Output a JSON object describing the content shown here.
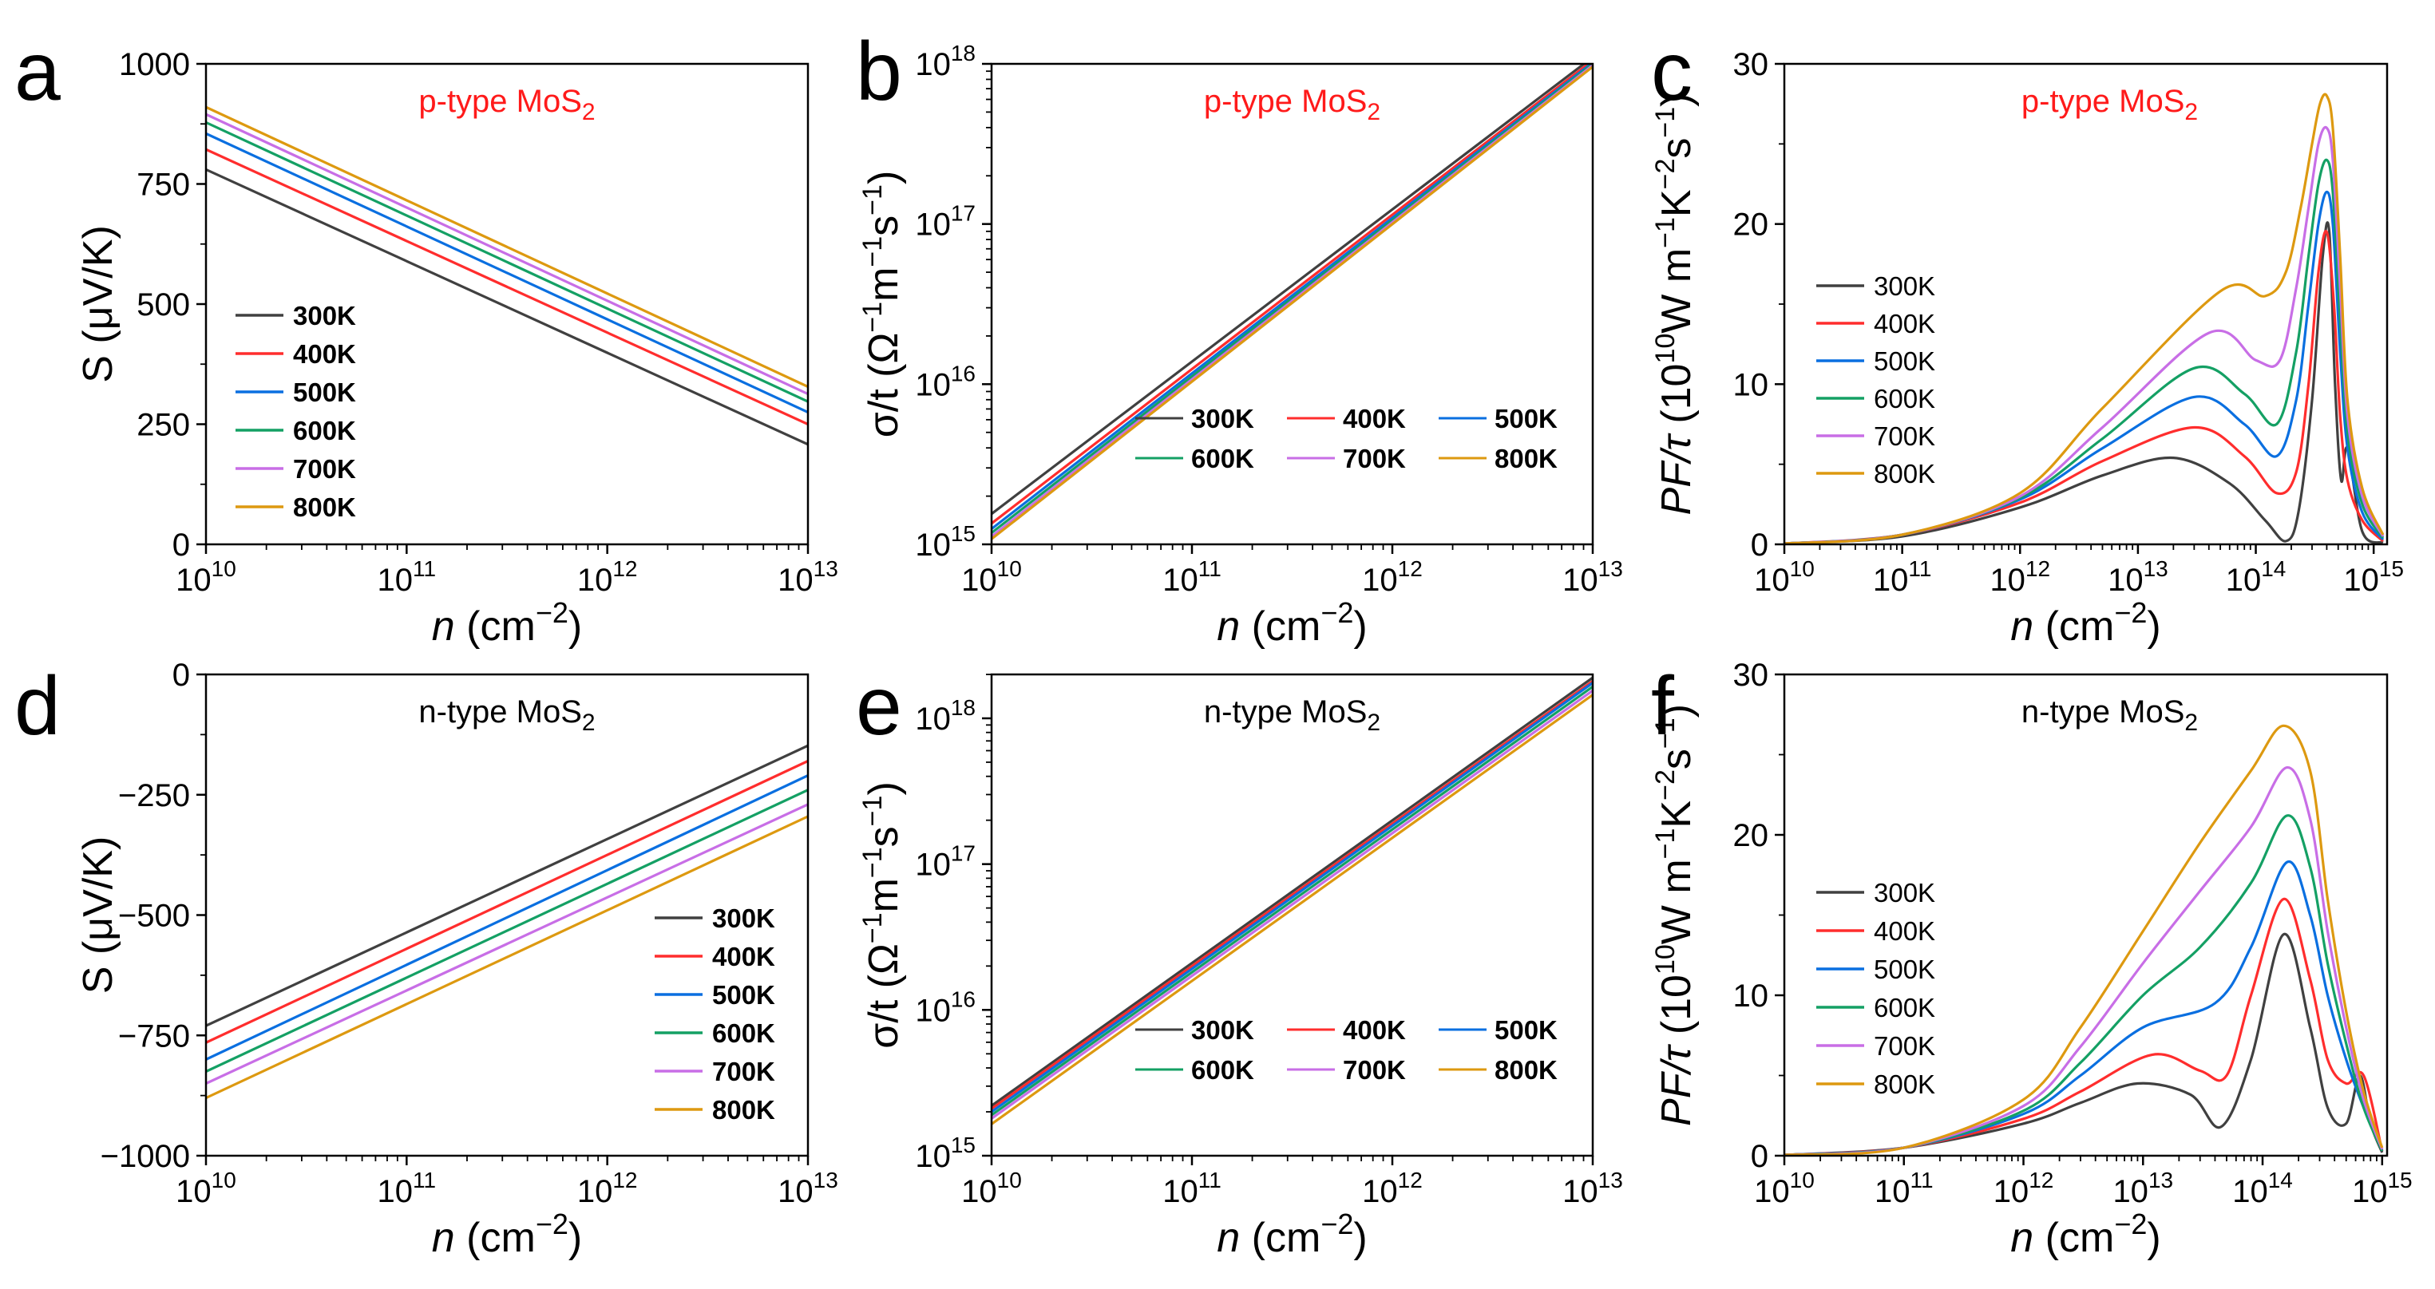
{
  "figure": {
    "material": "MoS2",
    "temperatures": [
      "300K",
      "400K",
      "500K",
      "600K",
      "700K",
      "800K"
    ],
    "colors": [
      "#404040",
      "#ff2d2d",
      "#0a6fe0",
      "#14a064",
      "#c86ee6",
      "#dd9910"
    ],
    "x_axis_label": "n (cm−2)"
  },
  "chart_data": [
    {
      "panel": "a",
      "type": "line",
      "title": "p-type MoS2",
      "xlabel": "n (cm−2)",
      "ylabel": "S (μV/K)",
      "xscale": "log",
      "xlim": [
        10000000000.0,
        10000000000000.0
      ],
      "yscale": "linear",
      "ylim": [
        0,
        1000
      ],
      "xticks": [
        "10^10",
        "10^11",
        "10^12",
        "10^13"
      ],
      "yticks": [
        "0",
        "250",
        "500",
        "750",
        "1000"
      ],
      "legend": "lower-left",
      "series": [
        {
          "name": "300K",
          "x": [
            10000000000.0,
            10000000000000.0
          ],
          "y": [
            780,
            208
          ]
        },
        {
          "name": "400K",
          "x": [
            10000000000.0,
            10000000000000.0
          ],
          "y": [
            822,
            250
          ]
        },
        {
          "name": "500K",
          "x": [
            10000000000.0,
            10000000000000.0
          ],
          "y": [
            855,
            275
          ]
        },
        {
          "name": "600K",
          "x": [
            10000000000.0,
            10000000000000.0
          ],
          "y": [
            878,
            297
          ]
        },
        {
          "name": "700K",
          "x": [
            10000000000.0,
            10000000000000.0
          ],
          "y": [
            895,
            313
          ]
        },
        {
          "name": "800K",
          "x": [
            10000000000.0,
            10000000000000.0
          ],
          "y": [
            910,
            328
          ]
        }
      ]
    },
    {
      "panel": "b",
      "type": "line",
      "title": "p-type MoS2",
      "xlabel": "n (cm−2)",
      "ylabel": "σ/t (Ω−1m−1s−1)",
      "xscale": "log",
      "xlim": [
        10000000000.0,
        10000000000000.0
      ],
      "yscale": "log",
      "ylim": [
        1000000000000000.0,
        1e+18
      ],
      "xticks": [
        "10^10",
        "10^11",
        "10^12",
        "10^13"
      ],
      "yticks": [
        "10^15",
        "10^16",
        "10^17",
        "10^18"
      ],
      "legend": "lower-right",
      "series": [
        {
          "name": "300K",
          "x": [
            10000000000.0,
            10000000000000.0
          ],
          "y": [
            1550000000000000.0,
            1.1e+18
          ]
        },
        {
          "name": "400K",
          "x": [
            10000000000.0,
            10000000000000.0
          ],
          "y": [
            1350000000000000.0,
            1.05e+18
          ]
        },
        {
          "name": "500K",
          "x": [
            10000000000.0,
            10000000000000.0
          ],
          "y": [
            1250000000000000.0,
            1.02e+18
          ]
        },
        {
          "name": "600K",
          "x": [
            10000000000.0,
            10000000000000.0
          ],
          "y": [
            1180000000000000.0,
            1e+18
          ]
        },
        {
          "name": "700K",
          "x": [
            10000000000.0,
            10000000000000.0
          ],
          "y": [
            1120000000000000.0,
            9.8e+17
          ]
        },
        {
          "name": "800K",
          "x": [
            10000000000.0,
            10000000000000.0
          ],
          "y": [
            1080000000000000.0,
            9.6e+17
          ]
        }
      ]
    },
    {
      "panel": "c",
      "type": "line",
      "title": "p-type MoS2",
      "xlabel": "n (cm−2)",
      "ylabel": "PF/τ (10^10 W m−1K−2s−1)",
      "xscale": "log",
      "xlim": [
        10000000000.0,
        1300000000000000.0
      ],
      "yscale": "linear",
      "ylim": [
        0,
        30
      ],
      "xticks": [
        "10^10",
        "10^11",
        "10^12",
        "10^13",
        "10^14",
        "10^15"
      ],
      "yticks": [
        "0",
        "10",
        "20",
        "30"
      ],
      "legend": "center-left",
      "series": [
        {
          "name": "300K",
          "x": [
            10000000000.0,
            100000000000.0,
            1000000000000.0,
            5000000000000.0,
            20000000000000.0,
            60000000000000.0,
            120000000000000.0,
            180000000000000.0,
            230000000000000.0,
            300000000000000.0,
            370000000000000.0,
            420000000000000.0,
            470000000000000.0,
            530000000000000.0,
            600000000000000.0,
            800000000000000.0,
            1200000000000000.0
          ],
          "y": [
            0.05,
            0.5,
            2.3,
            4.3,
            5.4,
            3.8,
            1.5,
            0.2,
            2,
            9,
            18,
            19.5,
            10,
            4,
            6,
            0.8,
            0.1
          ]
        },
        {
          "name": "400K",
          "x": [
            10000000000.0,
            100000000000.0,
            1000000000000.0,
            5000000000000.0,
            30000000000000.0,
            80000000000000.0,
            150000000000000.0,
            220000000000000.0,
            280000000000000.0,
            340000000000000.0,
            400000000000000.0,
            460000000000000.0,
            520000000000000.0,
            600000000000000.0,
            800000000000000.0,
            1200000000000000.0
          ],
          "y": [
            0.05,
            0.6,
            2.6,
            5.2,
            7.3,
            5.5,
            3.2,
            4.5,
            10,
            17,
            19.5,
            15,
            8,
            4,
            1.5,
            0.2
          ]
        },
        {
          "name": "500K",
          "x": [
            10000000000.0,
            100000000000.0,
            1000000000000.0,
            5000000000000.0,
            30000000000000.0,
            80000000000000.0,
            150000000000000.0,
            220000000000000.0,
            280000000000000.0,
            340000000000000.0,
            400000000000000.0,
            450000000000000.0,
            520000000000000.0,
            600000000000000.0,
            800000000000000.0,
            1200000000000000.0
          ],
          "y": [
            0.05,
            0.6,
            2.8,
            6.0,
            9.2,
            7.5,
            5.5,
            9,
            15,
            20,
            22,
            20,
            12,
            6,
            2,
            0.3
          ]
        },
        {
          "name": "600K",
          "x": [
            10000000000.0,
            100000000000.0,
            1000000000000.0,
            5000000000000.0,
            30000000000000.0,
            80000000000000.0,
            150000000000000.0,
            220000000000000.0,
            280000000000000.0,
            340000000000000.0,
            400000000000000.0,
            450000000000000.0,
            520000000000000.0,
            600000000000000.0,
            800000000000000.0,
            1200000000000000.0
          ],
          "y": [
            0.05,
            0.6,
            2.9,
            6.6,
            11.0,
            9.4,
            7.5,
            12,
            18,
            22.5,
            24,
            22,
            14,
            7,
            2.5,
            0.4
          ]
        },
        {
          "name": "700K",
          "x": [
            10000000000.0,
            100000000000.0,
            1000000000000.0,
            5000000000000.0,
            40000000000000.0,
            100000000000000.0,
            160000000000000.0,
            220000000000000.0,
            280000000000000.0,
            340000000000000.0,
            400000000000000.0,
            450000000000000.0,
            520000000000000.0,
            600000000000000.0,
            800000000000000.0,
            1200000000000000.0
          ],
          "y": [
            0.05,
            0.6,
            3.0,
            7.3,
            13.2,
            11.5,
            11.5,
            16,
            21,
            25,
            26,
            24,
            16,
            8,
            3,
            0.5
          ]
        },
        {
          "name": "800K",
          "x": [
            10000000000.0,
            100000000000.0,
            1000000000000.0,
            5000000000000.0,
            50000000000000.0,
            120000000000000.0,
            180000000000000.0,
            240000000000000.0,
            300000000000000.0,
            350000000000000.0,
            400000000000000.0,
            450000000000000.0,
            520000000000000.0,
            600000000000000.0,
            800000000000000.0,
            1200000000000000.0
          ],
          "y": [
            0.05,
            0.6,
            3.2,
            8.5,
            15.8,
            15.5,
            17,
            21,
            25,
            27.5,
            28,
            26,
            18,
            9,
            3.5,
            0.6
          ]
        }
      ]
    },
    {
      "panel": "d",
      "type": "line",
      "title": "n-type MoS2",
      "xlabel": "n (cm−2)",
      "ylabel": "S (μV/K)",
      "xscale": "log",
      "xlim": [
        10000000000.0,
        10000000000000.0
      ],
      "yscale": "linear",
      "ylim": [
        -1000,
        0
      ],
      "xticks": [
        "10^10",
        "10^11",
        "10^12",
        "10^13"
      ],
      "yticks": [
        "−1000",
        "−750",
        "−500",
        "−250",
        "0"
      ],
      "legend": "lower-right",
      "series": [
        {
          "name": "300K",
          "x": [
            10000000000.0,
            10000000000000.0
          ],
          "y": [
            -730,
            -148
          ]
        },
        {
          "name": "400K",
          "x": [
            10000000000.0,
            10000000000000.0
          ],
          "y": [
            -765,
            -180
          ]
        },
        {
          "name": "500K",
          "x": [
            10000000000.0,
            10000000000000.0
          ],
          "y": [
            -800,
            -210
          ]
        },
        {
          "name": "600K",
          "x": [
            10000000000.0,
            10000000000000.0
          ],
          "y": [
            -825,
            -240
          ]
        },
        {
          "name": "700K",
          "x": [
            10000000000.0,
            10000000000000.0
          ],
          "y": [
            -850,
            -270
          ]
        },
        {
          "name": "800K",
          "x": [
            10000000000.0,
            10000000000000.0
          ],
          "y": [
            -880,
            -295
          ]
        }
      ]
    },
    {
      "panel": "e",
      "type": "line",
      "title": "n-type MoS2",
      "xlabel": "n (cm−2)",
      "ylabel": "σ/t (Ω−1m−1s−1)",
      "xscale": "log",
      "xlim": [
        10000000000.0,
        10000000000000.0
      ],
      "yscale": "log",
      "ylim": [
        1000000000000000.0,
        2e+18
      ],
      "xticks": [
        "10^10",
        "10^11",
        "10^12",
        "10^13"
      ],
      "yticks": [
        "10^15",
        "10^16",
        "10^17",
        "10^18"
      ],
      "legend": "lower-right",
      "series": [
        {
          "name": "300K",
          "x": [
            10000000000.0,
            10000000000000.0
          ],
          "y": [
            2200000000000000.0,
            1.9e+18
          ]
        },
        {
          "name": "400K",
          "x": [
            10000000000.0,
            10000000000000.0
          ],
          "y": [
            2100000000000000.0,
            1.8e+18
          ]
        },
        {
          "name": "500K",
          "x": [
            10000000000.0,
            10000000000000.0
          ],
          "y": [
            2000000000000000.0,
            1.75e+18
          ]
        },
        {
          "name": "600K",
          "x": [
            10000000000.0,
            10000000000000.0
          ],
          "y": [
            1900000000000000.0,
            1.65e+18
          ]
        },
        {
          "name": "700K",
          "x": [
            10000000000.0,
            10000000000000.0
          ],
          "y": [
            1800000000000000.0,
            1.55e+18
          ]
        },
        {
          "name": "800K",
          "x": [
            10000000000.0,
            10000000000000.0
          ],
          "y": [
            1650000000000000.0,
            1.45e+18
          ]
        }
      ]
    },
    {
      "panel": "f",
      "type": "line",
      "title": "n-type MoS2",
      "xlabel": "n (cm−2)",
      "ylabel": "PF/τ (10^10 W m−1K−2s−1)",
      "xscale": "log",
      "xlim": [
        10000000000.0,
        1100000000000000.0
      ],
      "yscale": "linear",
      "ylim": [
        0,
        30
      ],
      "xticks": [
        "10^10",
        "10^11",
        "10^12",
        "10^13",
        "10^14",
        "10^15"
      ],
      "yticks": [
        "0",
        "10",
        "20",
        "30"
      ],
      "legend": "center-left",
      "series": [
        {
          "name": "300K",
          "x": [
            10000000000.0,
            100000000000.0,
            1000000000000.0,
            3000000000000.0,
            9000000000000.0,
            25000000000000.0,
            45000000000000.0,
            80000000000000.0,
            150000000000000.0,
            250000000000000.0,
            350000000000000.0,
            500000000000000.0,
            650000000000000.0,
            800000000000000.0,
            1000000000000000.0
          ],
          "y": [
            0.05,
            0.5,
            2.0,
            3.3,
            4.5,
            3.8,
            1.8,
            6,
            13.8,
            8,
            3,
            2,
            5,
            2,
            0.2
          ]
        },
        {
          "name": "400K",
          "x": [
            10000000000.0,
            100000000000.0,
            1000000000000.0,
            3000000000000.0,
            12000000000000.0,
            30000000000000.0,
            50000000000000.0,
            80000000000000.0,
            150000000000000.0,
            250000000000000.0,
            350000000000000.0,
            500000000000000.0,
            700000000000000.0,
            1000000000000000.0
          ],
          "y": [
            0.05,
            0.5,
            2.3,
            4,
            6.3,
            5.3,
            5,
            10,
            16,
            11,
            6,
            4.5,
            5,
            0.3
          ]
        },
        {
          "name": "500K",
          "x": [
            10000000000.0,
            100000000000.0,
            1000000000000.0,
            3000000000000.0,
            10000000000000.0,
            40000000000000.0,
            80000000000000.0,
            160000000000000.0,
            250000000000000.0,
            350000000000000.0,
            500000000000000.0,
            700000000000000.0,
            1000000000000000.0
          ],
          "y": [
            0.05,
            0.5,
            2.6,
            5,
            8,
            9.5,
            13,
            18.3,
            15,
            10,
            6,
            3,
            0.3
          ]
        },
        {
          "name": "600K",
          "x": [
            10000000000.0,
            100000000000.0,
            1000000000000.0,
            3000000000000.0,
            10000000000000.0,
            30000000000000.0,
            80000000000000.0,
            160000000000000.0,
            250000000000000.0,
            350000000000000.0,
            500000000000000.0,
            700000000000000.0,
            1000000000000000.0
          ],
          "y": [
            0.05,
            0.5,
            2.8,
            5.8,
            10,
            13,
            17,
            21.2,
            18,
            12,
            7,
            3,
            0.3
          ]
        },
        {
          "name": "700K",
          "x": [
            10000000000.0,
            100000000000.0,
            1000000000000.0,
            3000000000000.0,
            10000000000000.0,
            30000000000000.0,
            80000000000000.0,
            160000000000000.0,
            250000000000000.0,
            350000000000000.0,
            500000000000000.0,
            700000000000000.0,
            1000000000000000.0
          ],
          "y": [
            0.05,
            0.5,
            3.1,
            6.8,
            12,
            16.5,
            20.5,
            24.2,
            21,
            14,
            8,
            3.5,
            0.4
          ]
        },
        {
          "name": "800K",
          "x": [
            10000000000.0,
            100000000000.0,
            1000000000000.0,
            3000000000000.0,
            10000000000000.0,
            30000000000000.0,
            80000000000000.0,
            150000000000000.0,
            250000000000000.0,
            350000000000000.0,
            500000000000000.0,
            700000000000000.0,
            1000000000000000.0
          ],
          "y": [
            0.05,
            0.5,
            3.5,
            8,
            14,
            19.5,
            24,
            26.8,
            24,
            16,
            9,
            4,
            0.5
          ]
        }
      ]
    }
  ]
}
